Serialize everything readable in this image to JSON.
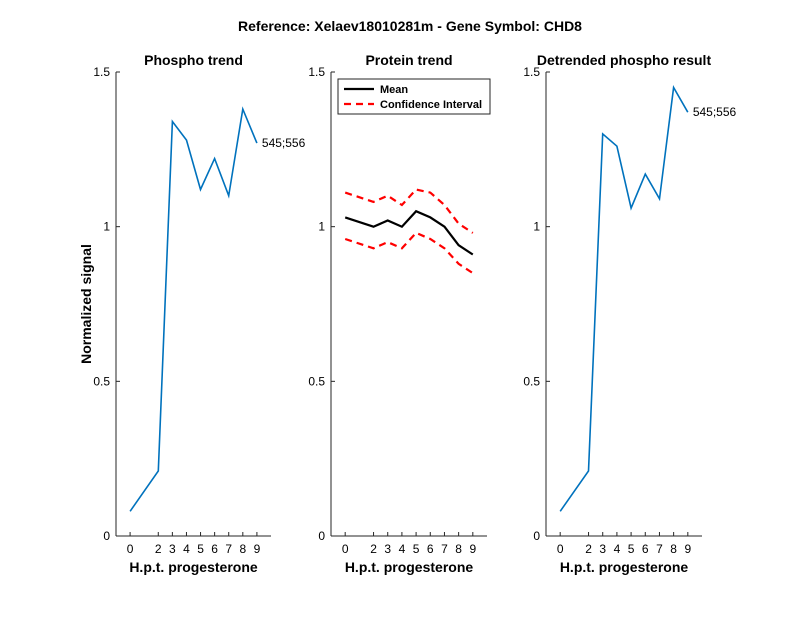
{
  "figure_title": "Reference:  Xelaev18010281m - Gene Symbol:  CHD8",
  "chart_data": [
    {
      "type": "line",
      "title": "Phospho trend",
      "xlabel": "H.p.t. progesterone",
      "ylabel": "Normalized signal",
      "x": [
        0,
        2,
        3,
        4,
        5,
        6,
        7,
        8,
        9
      ],
      "xtick_labels": [
        "0",
        "2",
        "3",
        "4",
        "5",
        "6",
        "7",
        "8",
        "9"
      ],
      "ylim": [
        0,
        1.5
      ],
      "yticks": [
        0,
        0.5,
        1,
        1.5
      ],
      "ytick_labels": [
        "0",
        "0.5",
        "1",
        "1.5"
      ],
      "series": [
        {
          "values": [
            0.08,
            0.21,
            1.34,
            1.28,
            1.12,
            1.22,
            1.1,
            1.38,
            1.27
          ],
          "color": "#0072BD",
          "style": "solid"
        }
      ],
      "annotation": "545;556",
      "grid": false
    },
    {
      "type": "line",
      "title": "Protein trend",
      "xlabel": "H.p.t. progesterone",
      "ylabel": "",
      "x": [
        0,
        2,
        3,
        4,
        5,
        6,
        7,
        8,
        9
      ],
      "xtick_labels": [
        "0",
        "2",
        "3",
        "4",
        "5",
        "6",
        "7",
        "8",
        "9"
      ],
      "ylim": [
        0,
        1.5
      ],
      "yticks": [
        0,
        0.5,
        1,
        1.5
      ],
      "ytick_labels": [
        "0",
        "0.5",
        "1",
        "1.5"
      ],
      "series": [
        {
          "name": "Mean",
          "values": [
            1.03,
            1.0,
            1.02,
            1.0,
            1.05,
            1.03,
            1.0,
            0.94,
            0.91
          ],
          "color": "#000000",
          "style": "solid"
        },
        {
          "name": "Confidence Interval",
          "values": [
            1.11,
            1.08,
            1.1,
            1.07,
            1.12,
            1.11,
            1.07,
            1.01,
            0.98
          ],
          "color": "#FF0000",
          "style": "dashed"
        },
        {
          "name": "",
          "values": [
            0.96,
            0.93,
            0.95,
            0.93,
            0.98,
            0.96,
            0.93,
            0.88,
            0.85
          ],
          "color": "#FF0000",
          "style": "dashed"
        }
      ],
      "legend": {
        "position": "top-left",
        "entries": [
          "Mean",
          "Confidence Interval"
        ]
      },
      "grid": false
    },
    {
      "type": "line",
      "title": "Detrended phospho result",
      "xlabel": "H.p.t. progesterone",
      "ylabel": "",
      "x": [
        0,
        2,
        3,
        4,
        5,
        6,
        7,
        8,
        9
      ],
      "xtick_labels": [
        "0",
        "2",
        "3",
        "4",
        "5",
        "6",
        "7",
        "8",
        "9"
      ],
      "ylim": [
        0,
        1.5
      ],
      "yticks": [
        0,
        0.5,
        1,
        1.5
      ],
      "ytick_labels": [
        "0",
        "0.5",
        "1",
        "1.5"
      ],
      "series": [
        {
          "values": [
            0.08,
            0.21,
            1.3,
            1.26,
            1.06,
            1.17,
            1.09,
            1.45,
            1.37
          ],
          "color": "#0072BD",
          "style": "solid"
        }
      ],
      "annotation": "545;556",
      "grid": false
    }
  ]
}
